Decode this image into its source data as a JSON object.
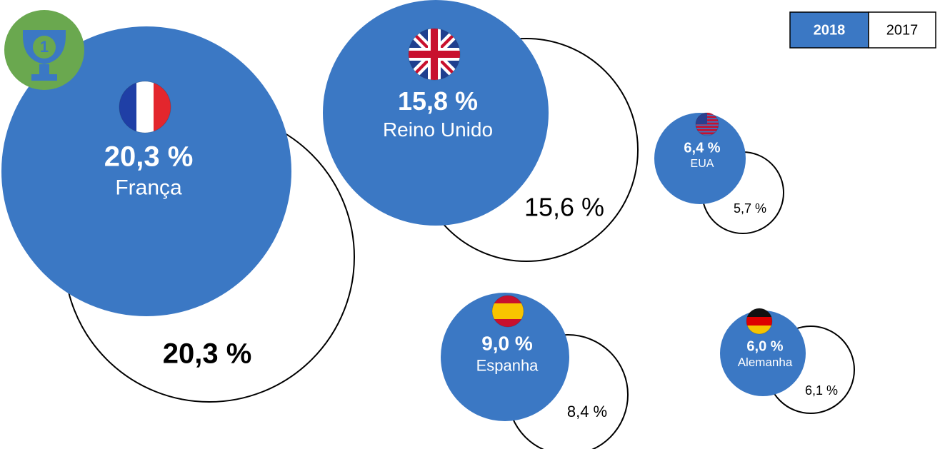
{
  "chart_data": {
    "type": "bubble",
    "categories": [
      "França",
      "Reino Unido",
      "EUA",
      "Espanha",
      "Alemanha"
    ],
    "series": [
      {
        "name": "2018",
        "color": "#3b78c4",
        "values": [
          20.3,
          15.8,
          6.4,
          9.0,
          6.0
        ],
        "value_labels": [
          "20,3 %",
          "15,8 %",
          "6,4 %",
          "9,0 %",
          "6,0 %"
        ]
      },
      {
        "name": "2017",
        "color": "#ffffff",
        "values": [
          20.3,
          15.6,
          5.7,
          8.4,
          6.1
        ],
        "value_labels": [
          "20,3 %",
          "15,6 %",
          "5,7 %",
          "8,4 %",
          "6,1 %"
        ]
      }
    ]
  }
}
